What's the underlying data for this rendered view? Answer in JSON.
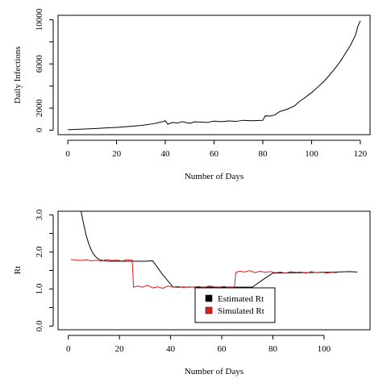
{
  "chart_data": [
    {
      "type": "line",
      "title": "",
      "xlabel": "Number of Days",
      "ylabel": "Daily Infections",
      "xlim": [
        -4,
        124
      ],
      "ylim": [
        -400,
        10400
      ],
      "x_ticks": [
        0,
        20,
        40,
        60,
        80,
        100,
        120
      ],
      "y_ticks": [
        0,
        2000,
        6000,
        10000
      ],
      "y_minor_ticks": [
        4000,
        8000
      ],
      "grid": false,
      "series": [
        {
          "name": "",
          "color": "#000000",
          "x": [
            0,
            5,
            10,
            15,
            20,
            25,
            30,
            35,
            37,
            39,
            40,
            41,
            43,
            45,
            47,
            50,
            52,
            55,
            57,
            60,
            63,
            66,
            69,
            72,
            75,
            78,
            80,
            81,
            83,
            85,
            87,
            90,
            93,
            95,
            97,
            100,
            102,
            105,
            107,
            110,
            112,
            114,
            116,
            118,
            119,
            120
          ],
          "values": [
            50,
            90,
            140,
            200,
            260,
            340,
            430,
            580,
            680,
            780,
            860,
            550,
            700,
            650,
            780,
            620,
            760,
            740,
            700,
            820,
            780,
            840,
            800,
            900,
            860,
            880,
            900,
            1300,
            1280,
            1400,
            1700,
            1900,
            2200,
            2600,
            2900,
            3400,
            3800,
            4400,
            4900,
            5700,
            6300,
            7000,
            7700,
            8600,
            9400,
            9900
          ]
        }
      ]
    },
    {
      "type": "line",
      "title": "",
      "xlabel": "Number of Days",
      "ylabel": "Rt",
      "xlim": [
        -4,
        118
      ],
      "ylim": [
        -0.1,
        3.1
      ],
      "x_ticks": [
        0,
        20,
        40,
        60,
        80,
        100
      ],
      "y_ticks": [
        0.0,
        1.0,
        2.0,
        3.0
      ],
      "y_tick_labels": [
        "0.0",
        "1.0",
        "2.0",
        "3.0"
      ],
      "y_minor_ticks": [
        0.5,
        1.5,
        2.5
      ],
      "grid": false,
      "legend": {
        "position": "center-bottom",
        "entries": [
          {
            "label": "Estimated Rt",
            "color": "#000000"
          },
          {
            "label": "Simulated Rt",
            "color": "#e41a1c"
          }
        ]
      },
      "series": [
        {
          "name": "Estimated Rt",
          "color": "#000000",
          "x": [
            5,
            6,
            7,
            8,
            9,
            10,
            11,
            12,
            14,
            16,
            20,
            25,
            30,
            33,
            37,
            41,
            50,
            60,
            65,
            72,
            75,
            80,
            90,
            100,
            105,
            110,
            113
          ],
          "values": [
            3.1,
            2.75,
            2.45,
            2.22,
            2.05,
            1.93,
            1.85,
            1.8,
            1.76,
            1.75,
            1.75,
            1.75,
            1.75,
            1.76,
            1.38,
            1.05,
            1.05,
            1.05,
            1.05,
            1.05,
            1.2,
            1.43,
            1.44,
            1.45,
            1.46,
            1.47,
            1.46
          ]
        },
        {
          "name": "Simulated Rt",
          "color": "#e41a1c",
          "x": [
            1,
            3,
            5,
            7,
            9,
            11,
            13,
            15,
            17,
            19,
            21,
            23,
            25,
            25.5,
            27,
            29,
            31,
            33,
            35,
            37,
            39,
            41,
            43,
            45,
            47,
            49,
            51,
            53,
            55,
            57,
            59,
            61,
            63,
            65,
            65.5,
            67,
            69,
            71,
            73,
            75,
            77,
            79,
            81,
            83,
            85,
            87,
            89,
            91,
            93,
            95,
            97,
            99,
            101,
            103,
            105
          ],
          "values": [
            1.8,
            1.78,
            1.77,
            1.79,
            1.76,
            1.78,
            1.75,
            1.8,
            1.77,
            1.78,
            1.76,
            1.79,
            1.78,
            1.05,
            1.08,
            1.05,
            1.1,
            1.03,
            1.06,
            1.02,
            1.08,
            1.05,
            1.07,
            1.04,
            1.06,
            1.05,
            1.07,
            1.04,
            1.08,
            1.06,
            1.05,
            1.07,
            1.04,
            1.06,
            1.45,
            1.48,
            1.46,
            1.5,
            1.44,
            1.48,
            1.45,
            1.47,
            1.44,
            1.46,
            1.43,
            1.47,
            1.45,
            1.46,
            1.43,
            1.47,
            1.44,
            1.46,
            1.43,
            1.45,
            1.44
          ]
        }
      ]
    }
  ]
}
